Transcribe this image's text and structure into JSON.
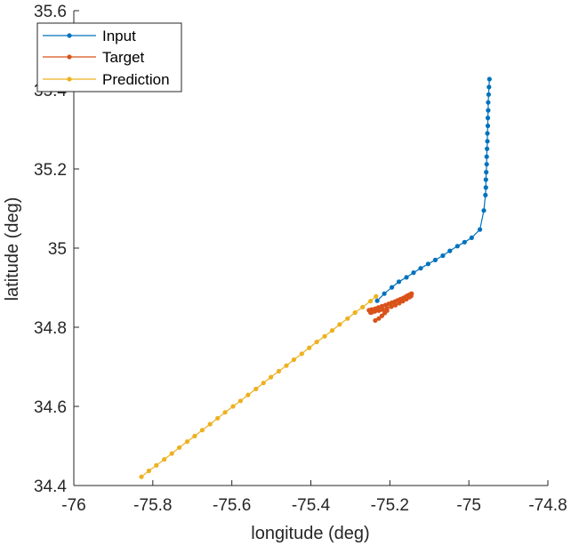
{
  "colors": {
    "input": "#0072BD",
    "target": "#D95319",
    "prediction": "#EDB120",
    "axis": "#262626"
  },
  "chart_data": {
    "type": "line",
    "xlabel": "longitude (deg)",
    "ylabel": "latitude (deg)",
    "xlim": [
      -76,
      -74.8
    ],
    "ylim": [
      34.4,
      35.6
    ],
    "xticks": [
      -76,
      -75.8,
      -75.6,
      -75.4,
      -75.2,
      -75,
      -74.8
    ],
    "yticks": [
      34.4,
      34.6,
      34.8,
      35,
      35.2,
      35.4,
      35.6
    ],
    "xtick_labels": [
      "-76",
      "-75.8",
      "-75.6",
      "-75.4",
      "-75.2",
      "-75",
      "-74.8"
    ],
    "ytick_labels": [
      "34.4",
      "34.6",
      "34.8",
      "35",
      "35.2",
      "35.4",
      "35.6"
    ],
    "grid": false,
    "legend_position": "top-left",
    "series": [
      {
        "name": "Input",
        "color_key": "input",
        "x": [
          -74.948,
          -74.949,
          -74.95,
          -74.951,
          -74.951,
          -74.952,
          -74.952,
          -74.953,
          -74.953,
          -74.954,
          -74.955,
          -74.955,
          -74.956,
          -74.957,
          -74.957,
          -74.958,
          -74.962,
          -74.972,
          -74.993,
          -75.011,
          -75.029,
          -75.048,
          -75.066,
          -75.085,
          -75.103,
          -75.122,
          -75.14,
          -75.158,
          -75.177,
          -75.195,
          -75.214,
          -75.232
        ],
        "y": [
          35.427,
          35.407,
          35.388,
          35.368,
          35.348,
          35.329,
          35.309,
          35.29,
          35.27,
          35.251,
          35.231,
          35.212,
          35.192,
          35.173,
          35.153,
          35.134,
          35.095,
          35.047,
          35.026,
          35.015,
          35.005,
          34.993,
          34.981,
          34.97,
          34.96,
          34.949,
          34.938,
          34.926,
          34.915,
          34.901,
          34.885,
          34.867
        ]
      },
      {
        "name": "Target",
        "color_key": "target",
        "x": [
          -75.237,
          -75.228,
          -75.22,
          -75.213,
          -75.207,
          -75.249,
          -75.245,
          -75.238,
          -75.228,
          -75.218,
          -75.207,
          -75.196,
          -75.186,
          -75.176,
          -75.167,
          -75.158,
          -75.15,
          -75.146,
          -75.253,
          -75.246,
          -75.237,
          -75.229,
          -75.22,
          -75.211,
          -75.203,
          -75.195,
          -75.187,
          -75.18,
          -75.173,
          -75.166,
          -75.16,
          -75.155,
          -75.15,
          -75.147,
          -75.145
        ],
        "y": [
          34.817,
          34.822,
          34.829,
          34.836,
          34.842,
          34.837,
          34.838,
          34.84,
          34.842,
          34.845,
          34.848,
          34.852,
          34.856,
          34.861,
          34.866,
          34.871,
          34.876,
          34.879,
          34.843,
          34.845,
          34.847,
          34.85,
          34.853,
          34.856,
          34.859,
          34.862,
          34.865,
          34.868,
          34.871,
          34.874,
          34.877,
          34.88,
          34.882,
          34.884,
          34.885
        ]
      },
      {
        "name": "Prediction",
        "color_key": "prediction",
        "x": [
          -75.829,
          -75.81,
          -75.791,
          -75.771,
          -75.752,
          -75.733,
          -75.713,
          -75.694,
          -75.675,
          -75.655,
          -75.636,
          -75.617,
          -75.597,
          -75.578,
          -75.559,
          -75.539,
          -75.52,
          -75.501,
          -75.481,
          -75.462,
          -75.443,
          -75.423,
          -75.404,
          -75.385,
          -75.365,
          -75.346,
          -75.327,
          -75.307,
          -75.288,
          -75.269,
          -75.249,
          -75.235
        ],
        "y": [
          34.422,
          34.437,
          34.451,
          34.466,
          34.481,
          34.496,
          34.511,
          34.525,
          34.54,
          34.555,
          34.57,
          34.585,
          34.6,
          34.614,
          34.629,
          34.644,
          34.659,
          34.674,
          34.689,
          34.703,
          34.718,
          34.733,
          34.748,
          34.763,
          34.777,
          34.792,
          34.807,
          34.822,
          34.837,
          34.851,
          34.866,
          34.878
        ]
      }
    ]
  }
}
